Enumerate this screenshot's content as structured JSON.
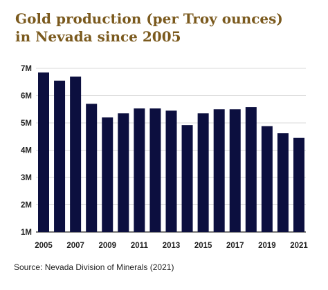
{
  "title_line1": "Gold production (per Troy ounces)",
  "title_line2": "in Nevada since 2005",
  "source": "Source: Nevada Division of Minerals (2021)",
  "colors": {
    "title": "#7b5a1e",
    "bar": "#0c0f3f",
    "grid": "#d9d9d9",
    "axis": "#222222"
  },
  "chart_data": {
    "type": "bar",
    "categories": [
      "2005",
      "2006",
      "2007",
      "2008",
      "2009",
      "2010",
      "2011",
      "2012",
      "2013",
      "2014",
      "2015",
      "2016",
      "2017",
      "2018",
      "2019",
      "2020",
      "2021"
    ],
    "values": [
      6.85,
      6.55,
      6.7,
      5.7,
      5.2,
      5.35,
      5.53,
      5.53,
      5.45,
      4.92,
      5.35,
      5.5,
      5.5,
      5.58,
      4.88,
      4.62,
      4.45
    ],
    "value_unit": "million troy ounces",
    "xtick_labels": [
      "2005",
      "2007",
      "2009",
      "2011",
      "2013",
      "2015",
      "2017",
      "2019",
      "2021"
    ],
    "ytick_values": [
      1,
      2,
      3,
      4,
      5,
      6,
      7
    ],
    "ytick_labels": [
      "1M",
      "2M",
      "3M",
      "4M",
      "5M",
      "6M",
      "7M"
    ],
    "ylim": [
      1,
      7
    ],
    "grid": true,
    "legend": "none"
  }
}
